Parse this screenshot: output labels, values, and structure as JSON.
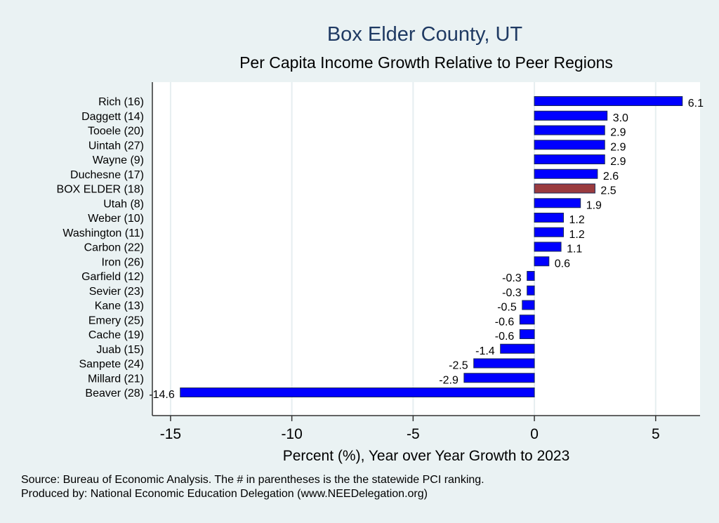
{
  "chart_data": {
    "type": "bar",
    "orientation": "horizontal",
    "title": "Box Elder County, UT",
    "subtitle": "Per Capita Income Growth Relative to Peer Regions",
    "xlabel": "Percent (%), Year over Year Growth to 2023",
    "ylabel": "",
    "xlim": [
      -15.75,
      6.83
    ],
    "xticks": [
      -15,
      -10,
      -5,
      0,
      5
    ],
    "grid": true,
    "categories": [
      "Rich (16)",
      "Daggett (14)",
      "Tooele (20)",
      "Uintah (27)",
      "Wayne  (9)",
      "Duchesne (17)",
      "BOX ELDER (18)",
      "Utah  (8)",
      "Weber (10)",
      "Washington (11)",
      "Carbon (22)",
      "Iron (26)",
      "Garfield (12)",
      "Sevier (23)",
      "Kane (13)",
      "Emery (25)",
      "Cache (19)",
      "Juab (15)",
      "Sanpete (24)",
      "Millard (21)",
      "Beaver (28)"
    ],
    "values": [
      6.1,
      3.0,
      2.9,
      2.9,
      2.9,
      2.6,
      2.5,
      1.9,
      1.2,
      1.2,
      1.1,
      0.6,
      -0.3,
      -0.3,
      -0.5,
      -0.6,
      -0.6,
      -1.4,
      -2.5,
      -2.9,
      -14.6
    ],
    "value_labels": [
      "6.1",
      "3.0",
      "2.9",
      "2.9",
      "2.9",
      "2.6",
      "2.5",
      "1.9",
      "1.2",
      "1.2",
      "1.1",
      "0.6",
      "-0.3",
      "-0.3",
      "-0.5",
      "-0.6",
      "-0.6",
      "-1.4",
      "-2.5",
      "-2.9",
      "-14.6"
    ],
    "highlight_index": 6,
    "colors": {
      "bar": "#0000ff",
      "highlight": "#9a3b3f",
      "title": "#1f3a63"
    }
  },
  "notes": [
    "Source: Bureau of Economic Analysis. The # in parentheses is the the statewide PCI ranking.",
    "Produced by: National Economic Education Delegation (www.NEEDelegation.org)"
  ]
}
